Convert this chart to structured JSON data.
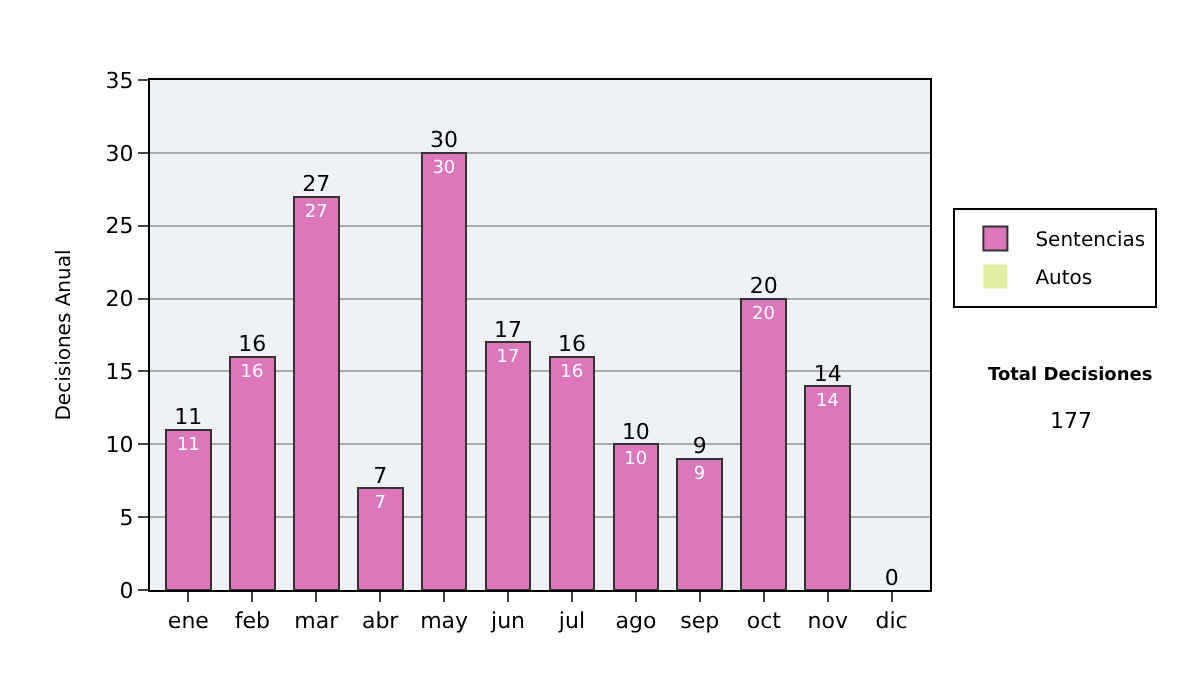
{
  "chart_data": {
    "type": "bar",
    "stacked": true,
    "ylabel": "Decisiones Anual",
    "categories": [
      "ene",
      "feb",
      "mar",
      "abr",
      "may",
      "jun",
      "jul",
      "ago",
      "sep",
      "oct",
      "nov",
      "dic"
    ],
    "series": [
      {
        "name": "Sentencias",
        "color": "#dd77bb",
        "values": [
          11,
          16,
          27,
          7,
          30,
          17,
          16,
          10,
          9,
          20,
          14,
          0
        ],
        "value_labels": [
          "11",
          "16",
          "27",
          "7",
          "30",
          "17",
          "16",
          "10",
          "9",
          "20",
          "14",
          null
        ]
      },
      {
        "name": "Autos",
        "color": "#e0f0a0",
        "values": [
          0,
          0,
          0,
          0,
          0,
          0,
          0,
          0,
          0,
          0,
          0,
          0
        ]
      }
    ],
    "totals": [
      "11",
      "16",
      "27",
      "7",
      "30",
      "17",
      "16",
      "10",
      "9",
      "20",
      "14",
      "0"
    ],
    "ylim": [
      0,
      35
    ],
    "yticks": [
      0,
      5,
      10,
      15,
      20,
      25,
      30,
      35
    ],
    "grid": "y",
    "legend": "right",
    "annotations": [
      "Total Decisiones",
      "177"
    ]
  }
}
